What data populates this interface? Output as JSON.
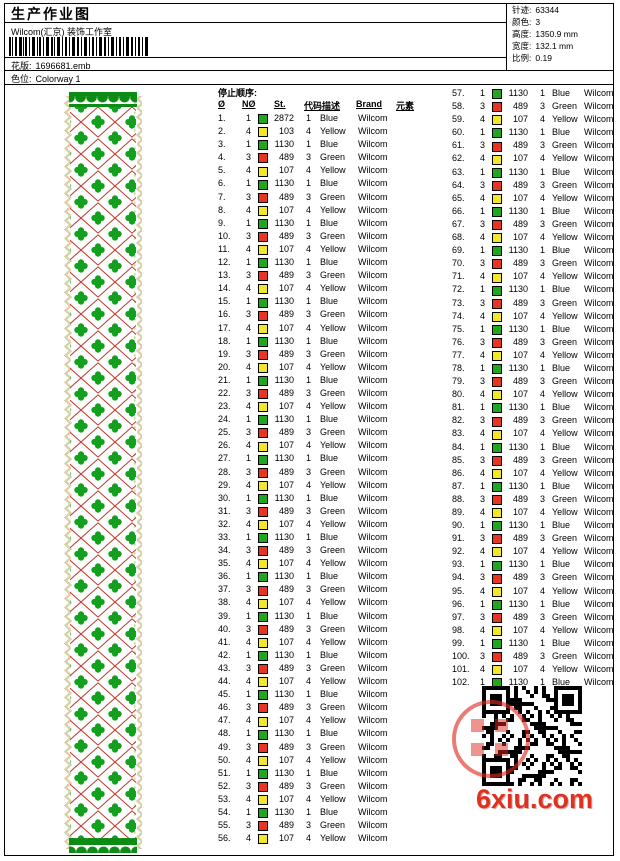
{
  "header": {
    "title": "生产作业图",
    "studio": "Wilcom(汇京) 装饰工作室",
    "pattern_label": "花版:",
    "pattern_value": "1696681.emb",
    "colorway_label": "色位:",
    "colorway_value": "Colorway 1"
  },
  "info": {
    "lines": [
      {
        "label": "针迹:",
        "value": "63344"
      },
      {
        "label": "颜色:",
        "value": "3"
      },
      {
        "label": "高度:",
        "value": "1350.9 mm"
      },
      {
        "label": "宽度:",
        "value": "132.1 mm"
      },
      {
        "label": "比例:",
        "value": "0.19"
      }
    ]
  },
  "design": {
    "description": "vertical embroidery strip of green clover motifs in a red diamond lattice with cream zigzag edges and green scalloped borders",
    "palette": {
      "leaf_green": "#12a01e",
      "border_green": "#0c8c15",
      "lattice_red": "#c03028",
      "edge_cream": "#d8cfa4"
    }
  },
  "table": {
    "stop_order_label": "停止顺序:",
    "headers": [
      "Ø",
      "NØ",
      "St.",
      "代码",
      "描述",
      "Brand",
      "元素"
    ],
    "brand": "Wilcom",
    "needle_swatch_colors": {
      "1": "#1fa81f",
      "3": "#e93323",
      "4": "#f2e72b"
    },
    "row_fields": [
      "no",
      "needle",
      "stitches",
      "code",
      "description"
    ],
    "split_index": 56,
    "rows": [
      [
        1,
        1,
        2872,
        1,
        "Blue"
      ],
      [
        2,
        4,
        103,
        4,
        "Yellow"
      ],
      [
        3,
        1,
        1130,
        1,
        "Blue"
      ],
      [
        4,
        3,
        489,
        3,
        "Green"
      ],
      [
        5,
        4,
        107,
        4,
        "Yellow"
      ],
      [
        6,
        1,
        1130,
        1,
        "Blue"
      ],
      [
        7,
        3,
        489,
        3,
        "Green"
      ],
      [
        8,
        4,
        107,
        4,
        "Yellow"
      ],
      [
        9,
        1,
        1130,
        1,
        "Blue"
      ],
      [
        10,
        3,
        489,
        3,
        "Green"
      ],
      [
        11,
        4,
        107,
        4,
        "Yellow"
      ],
      [
        12,
        1,
        1130,
        1,
        "Blue"
      ],
      [
        13,
        3,
        489,
        3,
        "Green"
      ],
      [
        14,
        4,
        107,
        4,
        "Yellow"
      ],
      [
        15,
        1,
        1130,
        1,
        "Blue"
      ],
      [
        16,
        3,
        489,
        3,
        "Green"
      ],
      [
        17,
        4,
        107,
        4,
        "Yellow"
      ],
      [
        18,
        1,
        1130,
        1,
        "Blue"
      ],
      [
        19,
        3,
        489,
        3,
        "Green"
      ],
      [
        20,
        4,
        107,
        4,
        "Yellow"
      ],
      [
        21,
        1,
        1130,
        1,
        "Blue"
      ],
      [
        22,
        3,
        489,
        3,
        "Green"
      ],
      [
        23,
        4,
        107,
        4,
        "Yellow"
      ],
      [
        24,
        1,
        1130,
        1,
        "Blue"
      ],
      [
        25,
        3,
        489,
        3,
        "Green"
      ],
      [
        26,
        4,
        107,
        4,
        "Yellow"
      ],
      [
        27,
        1,
        1130,
        1,
        "Blue"
      ],
      [
        28,
        3,
        489,
        3,
        "Green"
      ],
      [
        29,
        4,
        107,
        4,
        "Yellow"
      ],
      [
        30,
        1,
        1130,
        1,
        "Blue"
      ],
      [
        31,
        3,
        489,
        3,
        "Green"
      ],
      [
        32,
        4,
        107,
        4,
        "Yellow"
      ],
      [
        33,
        1,
        1130,
        1,
        "Blue"
      ],
      [
        34,
        3,
        489,
        3,
        "Green"
      ],
      [
        35,
        4,
        107,
        4,
        "Yellow"
      ],
      [
        36,
        1,
        1130,
        1,
        "Blue"
      ],
      [
        37,
        3,
        489,
        3,
        "Green"
      ],
      [
        38,
        4,
        107,
        4,
        "Yellow"
      ],
      [
        39,
        1,
        1130,
        1,
        "Blue"
      ],
      [
        40,
        3,
        489,
        3,
        "Green"
      ],
      [
        41,
        4,
        107,
        4,
        "Yellow"
      ],
      [
        42,
        1,
        1130,
        1,
        "Blue"
      ],
      [
        43,
        3,
        489,
        3,
        "Green"
      ],
      [
        44,
        4,
        107,
        4,
        "Yellow"
      ],
      [
        45,
        1,
        1130,
        1,
        "Blue"
      ],
      [
        46,
        3,
        489,
        3,
        "Green"
      ],
      [
        47,
        4,
        107,
        4,
        "Yellow"
      ],
      [
        48,
        1,
        1130,
        1,
        "Blue"
      ],
      [
        49,
        3,
        489,
        3,
        "Green"
      ],
      [
        50,
        4,
        107,
        4,
        "Yellow"
      ],
      [
        51,
        1,
        1130,
        1,
        "Blue"
      ],
      [
        52,
        3,
        489,
        3,
        "Green"
      ],
      [
        53,
        4,
        107,
        4,
        "Yellow"
      ],
      [
        54,
        1,
        1130,
        1,
        "Blue"
      ],
      [
        55,
        3,
        489,
        3,
        "Green"
      ],
      [
        56,
        4,
        107,
        4,
        "Yellow"
      ],
      [
        57,
        1,
        1130,
        1,
        "Blue"
      ],
      [
        58,
        3,
        489,
        3,
        "Green"
      ],
      [
        59,
        4,
        107,
        4,
        "Yellow"
      ],
      [
        60,
        1,
        1130,
        1,
        "Blue"
      ],
      [
        61,
        3,
        489,
        3,
        "Green"
      ],
      [
        62,
        4,
        107,
        4,
        "Yellow"
      ],
      [
        63,
        1,
        1130,
        1,
        "Blue"
      ],
      [
        64,
        3,
        489,
        3,
        "Green"
      ],
      [
        65,
        4,
        107,
        4,
        "Yellow"
      ],
      [
        66,
        1,
        1130,
        1,
        "Blue"
      ],
      [
        67,
        3,
        489,
        3,
        "Green"
      ],
      [
        68,
        4,
        107,
        4,
        "Yellow"
      ],
      [
        69,
        1,
        1130,
        1,
        "Blue"
      ],
      [
        70,
        3,
        489,
        3,
        "Green"
      ],
      [
        71,
        4,
        107,
        4,
        "Yellow"
      ],
      [
        72,
        1,
        1130,
        1,
        "Blue"
      ],
      [
        73,
        3,
        489,
        3,
        "Green"
      ],
      [
        74,
        4,
        107,
        4,
        "Yellow"
      ],
      [
        75,
        1,
        1130,
        1,
        "Blue"
      ],
      [
        76,
        3,
        489,
        3,
        "Green"
      ],
      [
        77,
        4,
        107,
        4,
        "Yellow"
      ],
      [
        78,
        1,
        1130,
        1,
        "Blue"
      ],
      [
        79,
        3,
        489,
        3,
        "Green"
      ],
      [
        80,
        4,
        107,
        4,
        "Yellow"
      ],
      [
        81,
        1,
        1130,
        1,
        "Blue"
      ],
      [
        82,
        3,
        489,
        3,
        "Green"
      ],
      [
        83,
        4,
        107,
        4,
        "Yellow"
      ],
      [
        84,
        1,
        1130,
        1,
        "Blue"
      ],
      [
        85,
        3,
        489,
        3,
        "Green"
      ],
      [
        86,
        4,
        107,
        4,
        "Yellow"
      ],
      [
        87,
        1,
        1130,
        1,
        "Blue"
      ],
      [
        88,
        3,
        489,
        3,
        "Green"
      ],
      [
        89,
        4,
        107,
        4,
        "Yellow"
      ],
      [
        90,
        1,
        1130,
        1,
        "Blue"
      ],
      [
        91,
        3,
        489,
        3,
        "Green"
      ],
      [
        92,
        4,
        107,
        4,
        "Yellow"
      ],
      [
        93,
        1,
        1130,
        1,
        "Blue"
      ],
      [
        94,
        3,
        489,
        3,
        "Green"
      ],
      [
        95,
        4,
        107,
        4,
        "Yellow"
      ],
      [
        96,
        1,
        1130,
        1,
        "Blue"
      ],
      [
        97,
        3,
        489,
        3,
        "Green"
      ],
      [
        98,
        4,
        107,
        4,
        "Yellow"
      ],
      [
        99,
        1,
        1130,
        1,
        "Blue"
      ],
      [
        100,
        3,
        489,
        3,
        "Green"
      ],
      [
        101,
        4,
        107,
        4,
        "Yellow"
      ],
      [
        102,
        1,
        1130,
        1,
        "Blue"
      ]
    ]
  },
  "watermark": {
    "site": "6xiu.com",
    "site_color": "#e03020"
  }
}
